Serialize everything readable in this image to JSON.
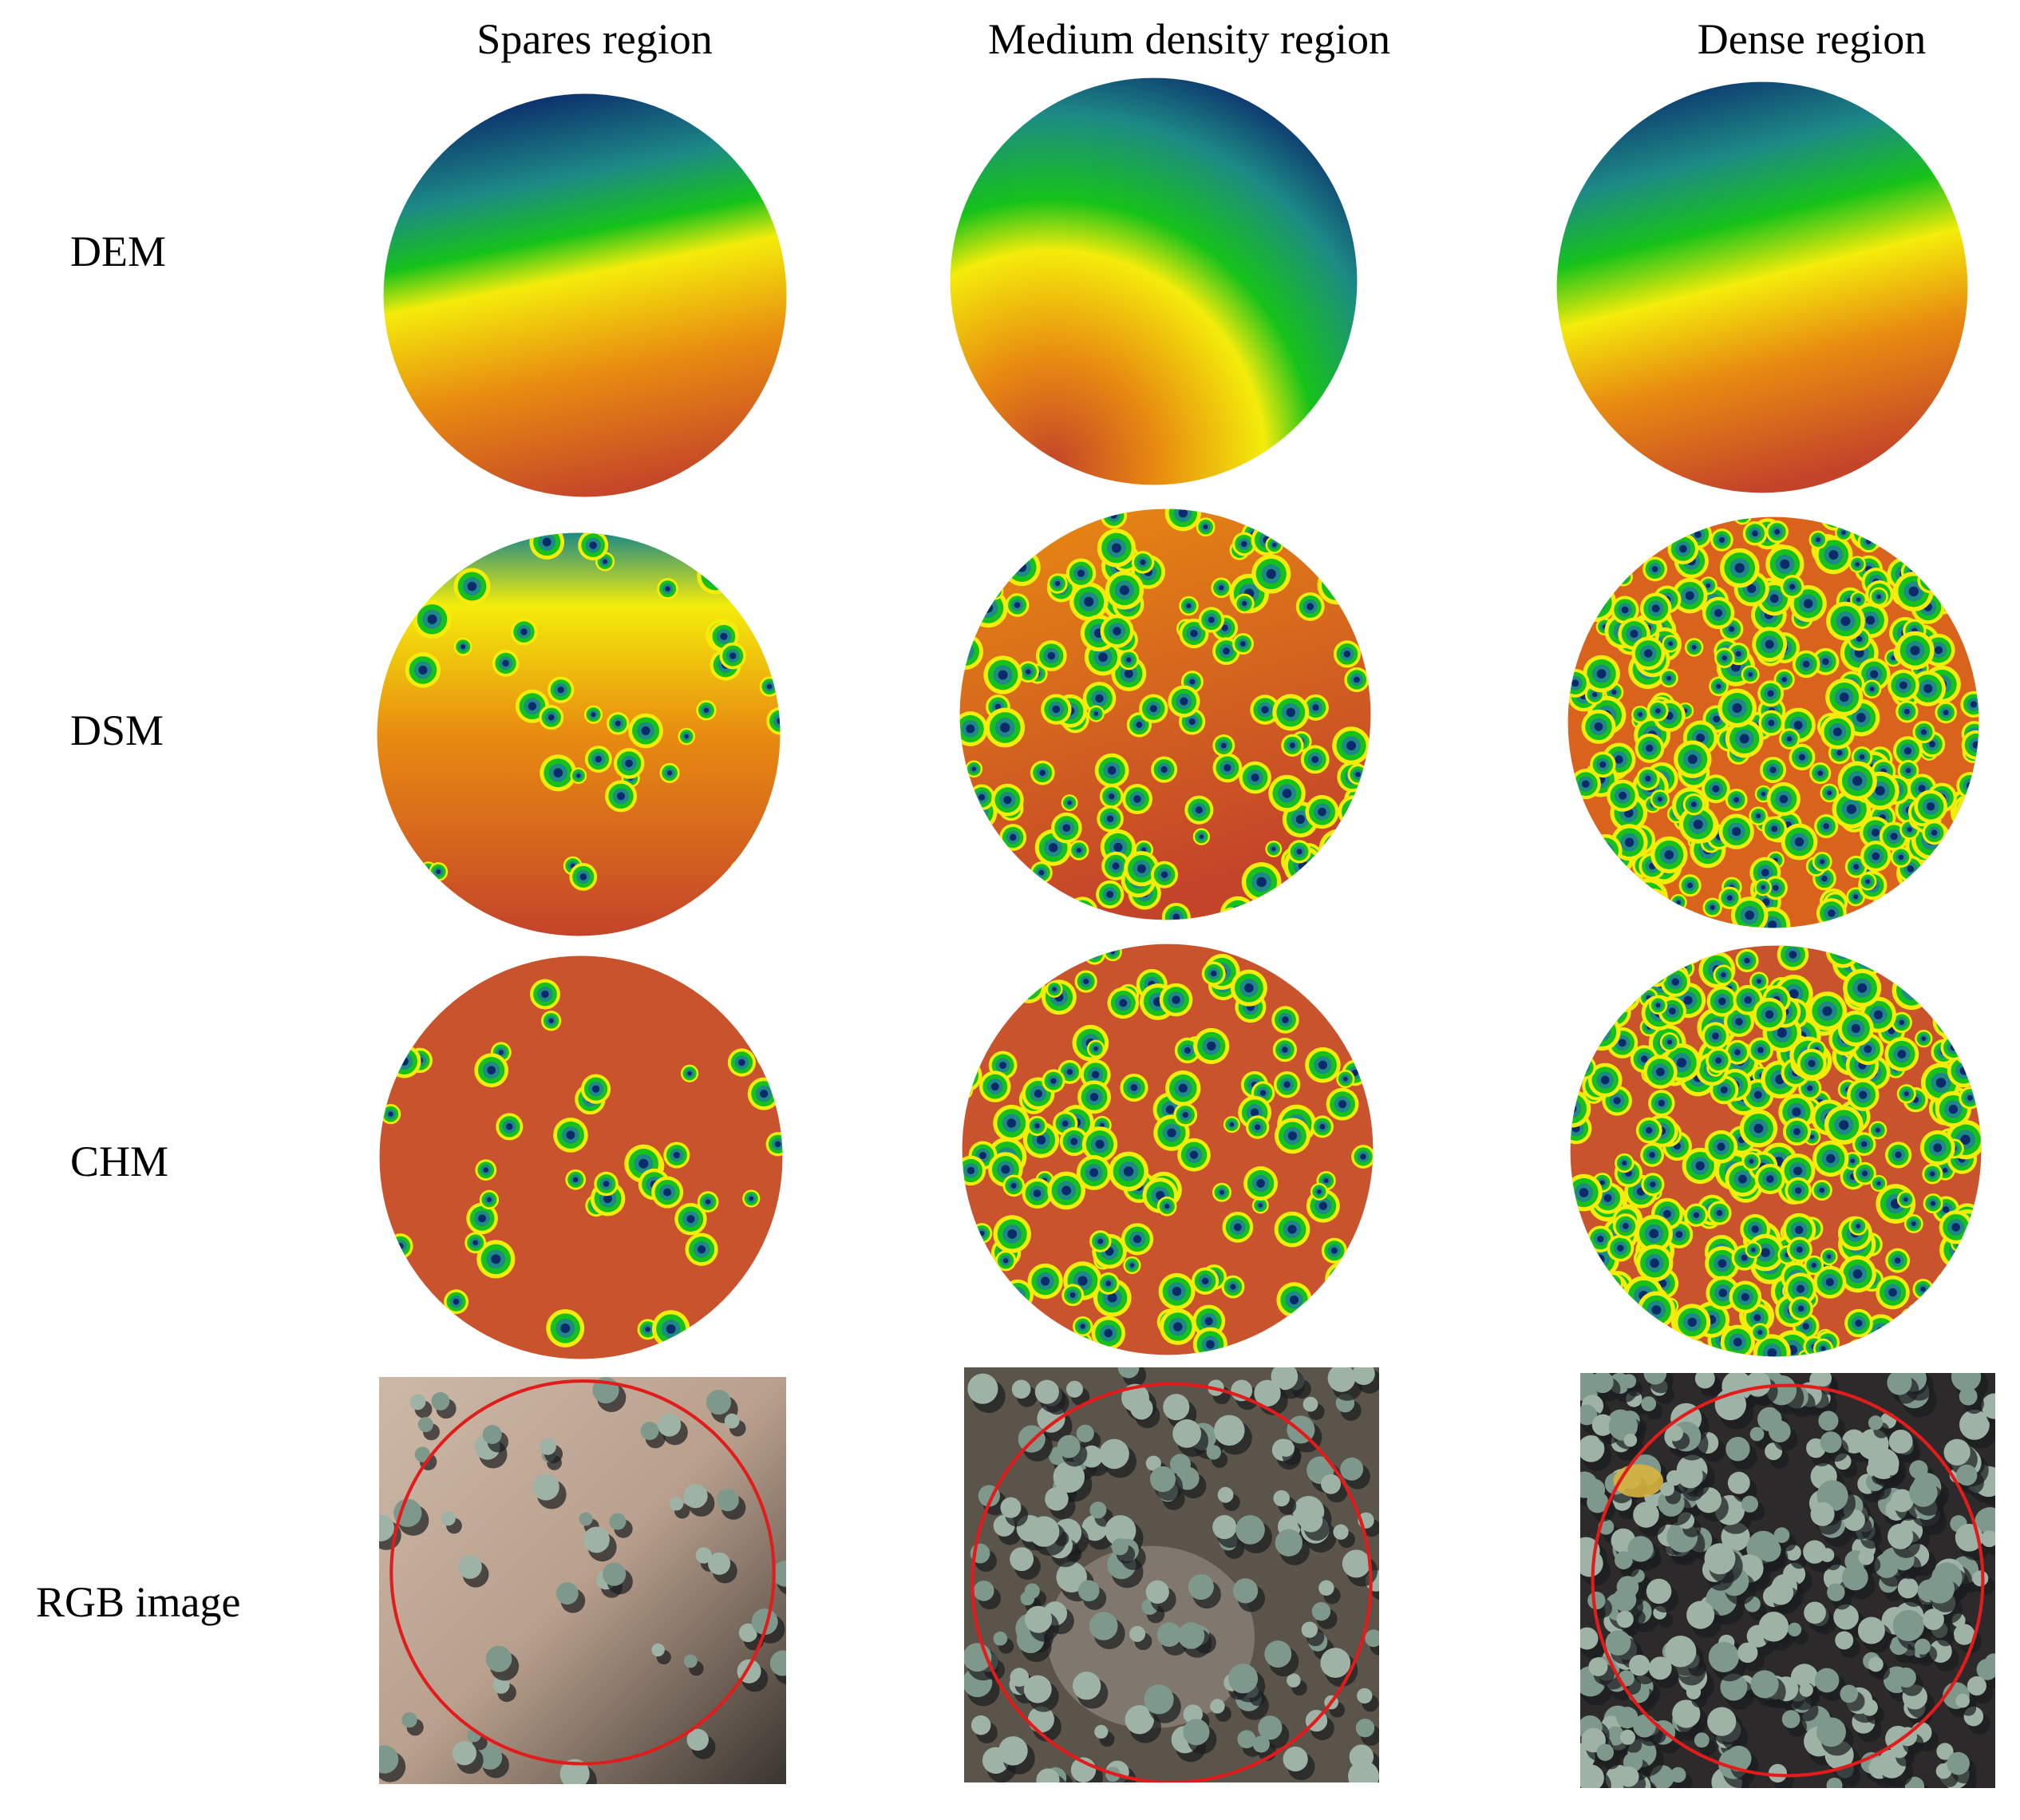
{
  "column_titles": [
    "Spares region",
    "Medium  density region",
    "Dense region"
  ],
  "row_labels": [
    "DEM",
    "DSM",
    "CHM",
    "RGB image"
  ],
  "colormap": [
    "#0b2a6b",
    "#1d8a86",
    "#16c21a",
    "#f4ec0a",
    "#e88b10",
    "#c4442a"
  ],
  "panels": {
    "dem": [
      "dem-sparse-panel",
      "dem-medium-panel",
      "dem-dense-panel"
    ],
    "dsm": [
      "dsm-sparse-panel",
      "dsm-medium-panel",
      "dsm-dense-panel"
    ],
    "chm": [
      "chm-sparse-panel",
      "chm-medium-panel",
      "chm-dense-panel"
    ],
    "rgb": [
      "rgb-sparse-panel",
      "rgb-medium-panel",
      "rgb-dense-panel"
    ]
  },
  "plot_boundary_color": "#e21b1b"
}
